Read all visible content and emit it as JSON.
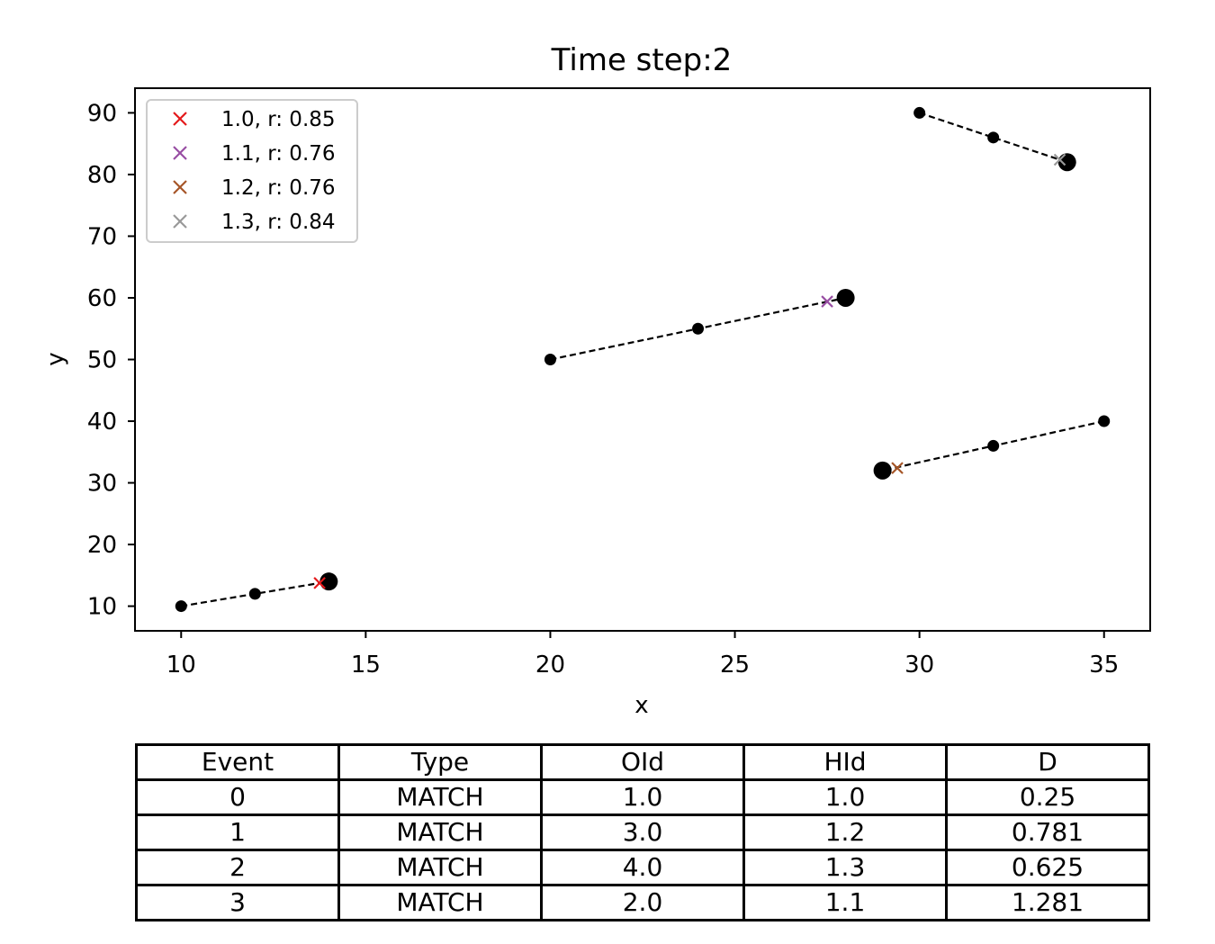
{
  "chart_data": {
    "type": "scatter",
    "title": "Time step:2",
    "xlabel": "x",
    "ylabel": "y",
    "xlim": [
      8.75,
      36.25
    ],
    "ylim": [
      6,
      94
    ],
    "xticks": [
      10,
      15,
      20,
      25,
      30,
      35
    ],
    "yticks": [
      10,
      20,
      30,
      40,
      50,
      60,
      70,
      80,
      90
    ],
    "grid": false,
    "legend_position": "top-left",
    "tracks": [
      {
        "points": [
          [
            10,
            10
          ],
          [
            12,
            12
          ],
          [
            14,
            14
          ]
        ]
      },
      {
        "points": [
          [
            20,
            50
          ],
          [
            24,
            55
          ],
          [
            28,
            60
          ]
        ]
      },
      {
        "points": [
          [
            35,
            40
          ],
          [
            32,
            36
          ],
          [
            29,
            32
          ]
        ]
      },
      {
        "points": [
          [
            30,
            90
          ],
          [
            32,
            86
          ],
          [
            34,
            82
          ]
        ]
      }
    ],
    "series": [
      {
        "name": "1.0, r: 0.85",
        "color": "#e41a1c",
        "marker": "x",
        "x": 13.75,
        "y": 13.75
      },
      {
        "name": "1.1, r: 0.76",
        "color": "#984ea3",
        "marker": "x",
        "x": 27.5,
        "y": 59.4
      },
      {
        "name": "1.2, r: 0.76",
        "color": "#a65628",
        "marker": "x",
        "x": 29.4,
        "y": 32.4
      },
      {
        "name": "1.3, r: 0.84",
        "color": "#999999",
        "marker": "x",
        "x": 33.8,
        "y": 82.4
      }
    ]
  },
  "table": {
    "headers": [
      "Event",
      "Type",
      "OId",
      "HId",
      "D"
    ],
    "rows": [
      [
        "0",
        "MATCH",
        "1.0",
        "1.0",
        "0.25"
      ],
      [
        "1",
        "MATCH",
        "3.0",
        "1.2",
        "0.781"
      ],
      [
        "2",
        "MATCH",
        "4.0",
        "1.3",
        "0.625"
      ],
      [
        "3",
        "MATCH",
        "2.0",
        "1.1",
        "1.281"
      ]
    ]
  }
}
